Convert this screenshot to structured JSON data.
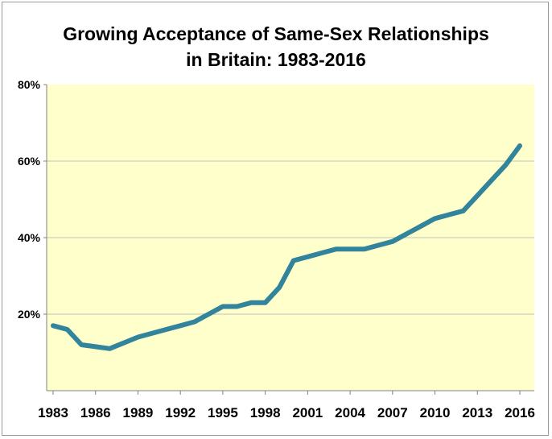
{
  "chart_data": {
    "type": "line",
    "title_line1": "Growing Acceptance of Same-Sex Relationships",
    "title_line2": "in Britain: 1983-2016",
    "xlabel": "",
    "ylabel": "",
    "xlim": [
      1983,
      2016
    ],
    "ylim": [
      0,
      80
    ],
    "y_ticks": [
      "80%",
      "60%",
      "40%",
      "20%"
    ],
    "x_ticks": [
      "1983",
      "1986",
      "1989",
      "1992",
      "1995",
      "1998",
      "2001",
      "2004",
      "2007",
      "2010",
      "2013",
      "2016"
    ],
    "grid": true,
    "legend": "none",
    "x": [
      1983,
      1984,
      1985,
      1986,
      1987,
      1989,
      1991,
      1992,
      1993,
      1994,
      1995,
      1996,
      1997,
      1998,
      1999,
      2000,
      2001,
      2002,
      2003,
      2004,
      2005,
      2006,
      2007,
      2008,
      2009,
      2010,
      2011,
      2012,
      2013,
      2014,
      2015,
      2016
    ],
    "values": [
      17,
      16,
      12,
      11.5,
      11,
      14,
      16,
      17,
      18,
      20,
      22,
      22,
      23,
      23,
      27,
      34,
      35,
      36,
      37,
      37,
      37,
      38,
      39,
      41,
      43,
      45,
      46,
      47,
      51,
      55,
      59,
      64
    ],
    "colors": {
      "plot_bg": "#ffffcc",
      "line": "#31849b",
      "grid": "#c0c0c0",
      "axis": "#808080"
    }
  }
}
